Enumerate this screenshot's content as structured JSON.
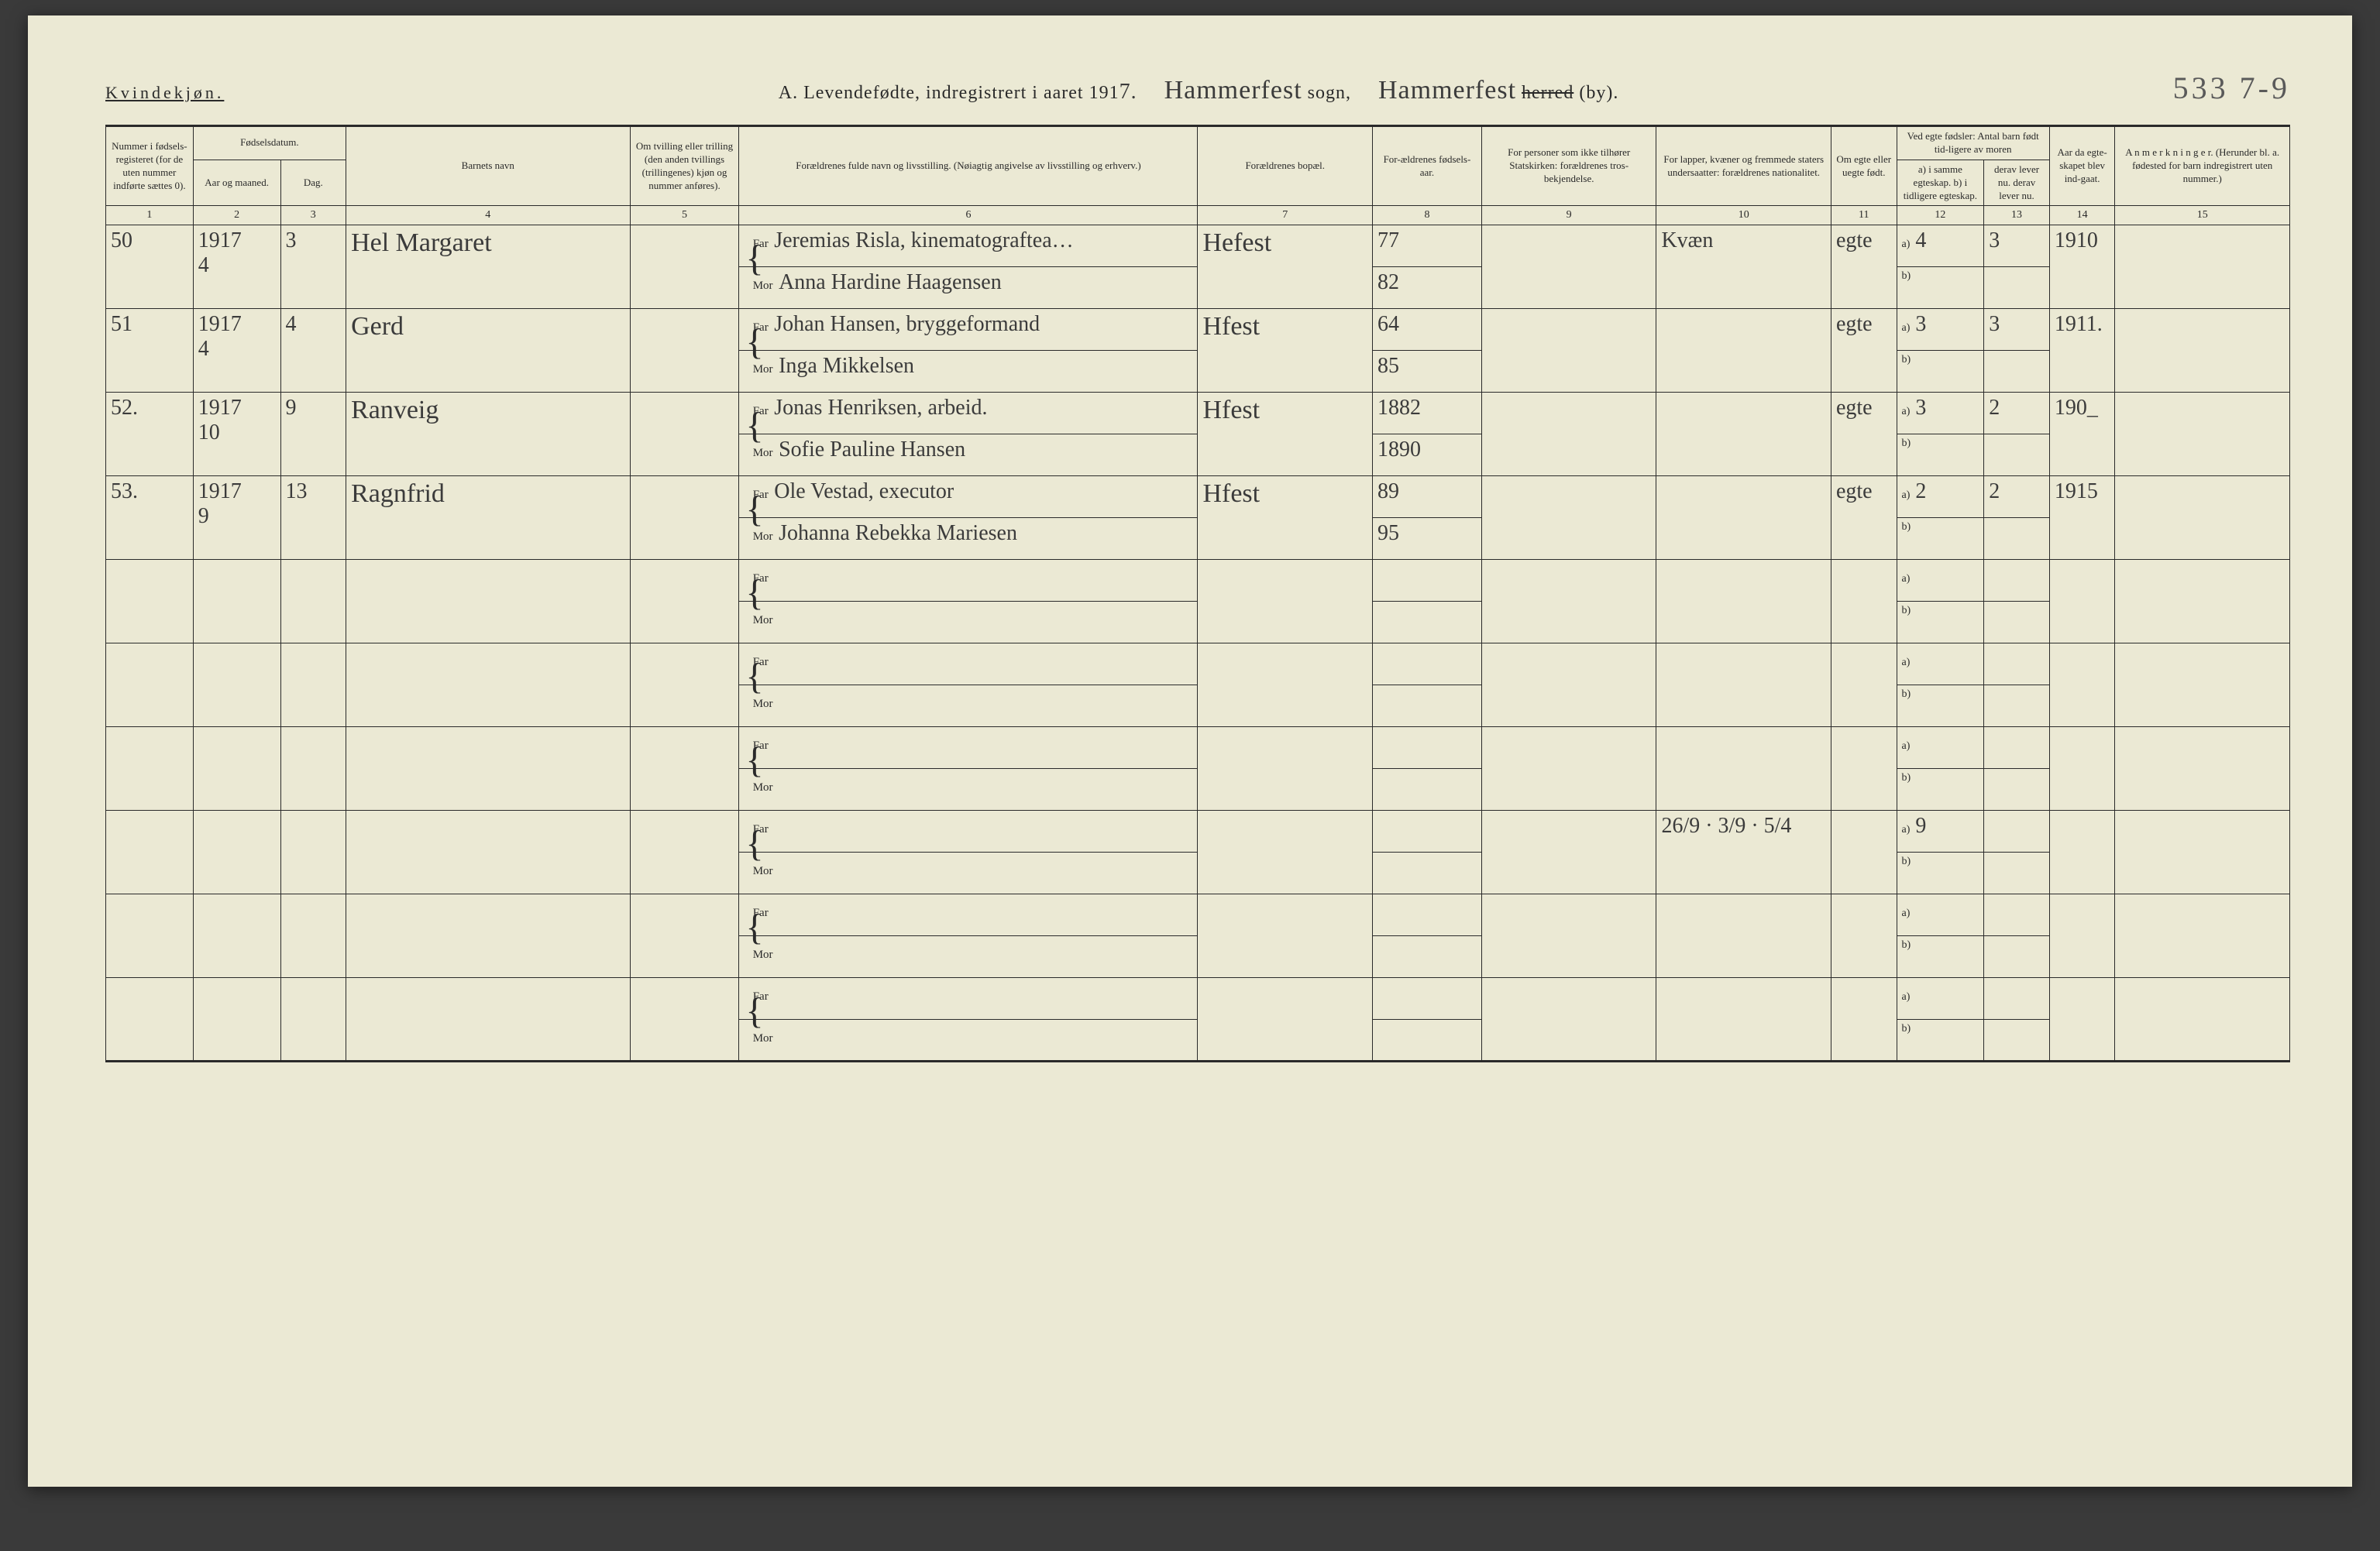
{
  "header": {
    "gender": "Kvindekjøn.",
    "title_prefix": "A. Levendefødte, indregistrert i aaret 191",
    "year_suffix": "7.",
    "sogn_hand": "Hammerfest",
    "sogn_label": "sogn,",
    "herred_hand": "Hammerfest",
    "herred_label_struck": "herred",
    "herred_label_tail": " (by).",
    "pagenum": "533 7-9"
  },
  "columns": {
    "c1": "Nummer i fødsels-registeret (for de uten nummer indførte sættes 0).",
    "c2_group": "Fødselsdatum.",
    "c2": "Aar og maaned.",
    "c3": "Dag.",
    "c4": "Barnets navn",
    "c5": "Om tvilling eller trilling (den anden tvillings (trillingenes) kjøn og nummer anføres).",
    "c6": "Forældrenes fulde navn og livsstilling. (Nøiagtig angivelse av livsstilling og erhverv.)",
    "c7": "Forældrenes bopæl.",
    "c8": "For-ældrenes fødsels-aar.",
    "c9": "For personer som ikke tilhører Statskirken: forældrenes tros-bekjendelse.",
    "c10": "For lapper, kvæner og fremmede staters undersaatter: forældrenes nationalitet.",
    "c11": "Om egte eller uegte født.",
    "c12_group": "Ved egte fødsler: Antal barn født tid-ligere av moren",
    "c12": "a) i samme egteskap. b) i tidligere egteskap.",
    "c13": "derav lever nu. derav lever nu.",
    "c14": "Aar da egte-skapet blev ind-gaat.",
    "c15": "A n m e r k n i n g e r. (Herunder bl. a. fødested for barn indregistrert uten nummer.)"
  },
  "colnums": [
    "1",
    "2",
    "3",
    "4",
    "5",
    "6",
    "7",
    "8",
    "9",
    "10",
    "11",
    "12",
    "13",
    "14",
    "15"
  ],
  "far": "Far",
  "mor": "Mor",
  "ab_a": "a)",
  "ab_b": "b)",
  "rows": [
    {
      "num": "50",
      "ym": "1917\n4",
      "day": "3",
      "child": "Hel Margaret",
      "far_text": "Jeremias Risla, kinematograftea…",
      "mor_text": "Anna Hardine Haagensen",
      "bopal": "Hefest",
      "far_yr": "77",
      "mor_yr": "82",
      "col10": "Kvæn",
      "egte": "egte",
      "a12": "4",
      "a13": "3",
      "c14": "1910"
    },
    {
      "num": "51",
      "ym": "1917\n4",
      "day": "4",
      "child": "Gerd",
      "far_text": "Johan Hansen, bryggeformand",
      "mor_text": "Inga Mikkelsen",
      "bopal": "Hfest",
      "far_yr": "64",
      "mor_yr": "85",
      "col10": "",
      "egte": "egte",
      "a12": "3",
      "a13": "3",
      "c14": "1911."
    },
    {
      "num": "52.",
      "ym": "1917\n10",
      "day": "9",
      "child": "Ranveig",
      "far_text": "Jonas Henriksen, arbeid.",
      "mor_text": "Sofie Pauline Hansen",
      "bopal": "Hfest",
      "far_yr": "1882",
      "mor_yr": "1890",
      "col10": "",
      "egte": "egte",
      "a12": "3",
      "a13": "2",
      "c14": "190_"
    },
    {
      "num": "53.",
      "ym": "1917\n9",
      "day": "13",
      "child": "Ragnfrid",
      "far_text": "Ole Vestad, executor",
      "mor_text": "Johanna Rebekka Mariesen",
      "bopal": "Hfest",
      "far_yr": "89",
      "mor_yr": "95",
      "col10": "",
      "egte": "egte",
      "a12": "2",
      "a13": "2",
      "c14": "1915"
    },
    {
      "num": "",
      "ym": "",
      "day": "",
      "child": "",
      "far_text": "",
      "mor_text": "",
      "bopal": "",
      "far_yr": "",
      "mor_yr": "",
      "col10": "",
      "egte": "",
      "a12": "",
      "a13": "",
      "c14": ""
    },
    {
      "num": "",
      "ym": "",
      "day": "",
      "child": "",
      "far_text": "",
      "mor_text": "",
      "bopal": "",
      "far_yr": "",
      "mor_yr": "",
      "col10": "",
      "egte": "",
      "a12": "",
      "a13": "",
      "c14": ""
    },
    {
      "num": "",
      "ym": "",
      "day": "",
      "child": "",
      "far_text": "",
      "mor_text": "",
      "bopal": "",
      "far_yr": "",
      "mor_yr": "",
      "col10": "",
      "egte": "",
      "a12": "",
      "a13": "",
      "c14": ""
    },
    {
      "num": "",
      "ym": "",
      "day": "",
      "child": "",
      "far_text": "",
      "mor_text": "",
      "bopal": "",
      "far_yr": "",
      "mor_yr": "",
      "col10": "26/9 · 3/9 · 5/4",
      "egte": "",
      "a12": "9",
      "a13": "",
      "c14": ""
    },
    {
      "num": "",
      "ym": "",
      "day": "",
      "child": "",
      "far_text": "",
      "mor_text": "",
      "bopal": "",
      "far_yr": "",
      "mor_yr": "",
      "col10": "",
      "egte": "",
      "a12": "",
      "a13": "",
      "c14": ""
    },
    {
      "num": "",
      "ym": "",
      "day": "",
      "child": "",
      "far_text": "",
      "mor_text": "",
      "bopal": "",
      "far_yr": "",
      "mor_yr": "",
      "col10": "",
      "egte": "",
      "a12": "",
      "a13": "",
      "c14": ""
    }
  ]
}
